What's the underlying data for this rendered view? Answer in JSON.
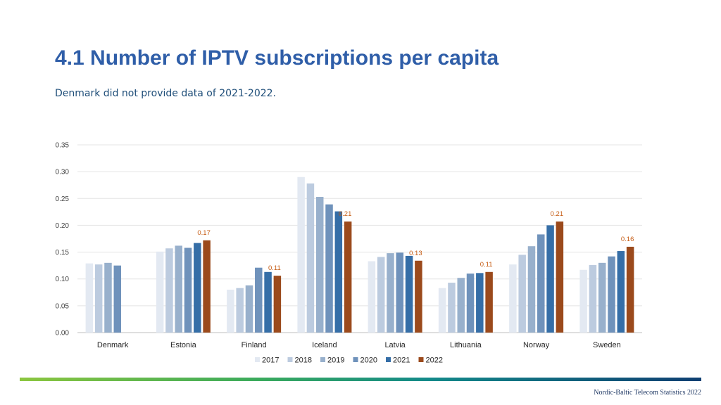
{
  "title": "4.1 Number of IPTV subscriptions per capita",
  "subtitle": "Denmark did not provide data of 2021-2022.",
  "footer": "Nordic-Baltic Telecom Statistics 2022",
  "chart_data": {
    "type": "bar",
    "categories": [
      "Denmark",
      "Estonia",
      "Finland",
      "Iceland",
      "Latvia",
      "Lithuania",
      "Norway",
      "Sweden"
    ],
    "series": [
      {
        "name": "2017",
        "color": "#e3e9f2",
        "values": [
          0.129,
          0.151,
          0.08,
          0.29,
          0.133,
          0.083,
          0.127,
          0.117
        ]
      },
      {
        "name": "2018",
        "color": "#bccbdf",
        "values": [
          0.127,
          0.157,
          0.083,
          0.278,
          0.141,
          0.093,
          0.145,
          0.126
        ]
      },
      {
        "name": "2019",
        "color": "#98b0cc",
        "values": [
          0.13,
          0.162,
          0.088,
          0.253,
          0.148,
          0.102,
          0.161,
          0.13
        ]
      },
      {
        "name": "2020",
        "color": "#6f92bb",
        "values": [
          0.125,
          0.158,
          0.121,
          0.239,
          0.149,
          0.11,
          0.183,
          0.142
        ]
      },
      {
        "name": "2021",
        "color": "#356ea7",
        "values": [
          null,
          0.167,
          0.113,
          0.226,
          0.143,
          0.111,
          0.2,
          0.152
        ]
      },
      {
        "name": "2022",
        "color": "#9b4a1c",
        "values": [
          null,
          0.172,
          0.106,
          0.207,
          0.134,
          0.113,
          0.207,
          0.16
        ]
      }
    ],
    "data_labels": {
      "series": "2022",
      "labels": [
        "",
        "0.17",
        "0.11",
        "0.21",
        "0.13",
        "0.11",
        "0.21",
        "0.16"
      ]
    },
    "ylim": [
      0,
      0.35
    ],
    "yticks": [
      "0.00",
      "0.05",
      "0.10",
      "0.15",
      "0.20",
      "0.25",
      "0.30",
      "0.35"
    ],
    "grid": true,
    "legend_position": "bottom",
    "label_color": "#c55a11"
  }
}
